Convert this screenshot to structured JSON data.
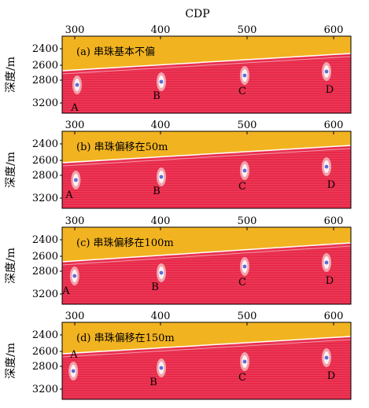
{
  "figure": {
    "top_axis_label": "CDP",
    "x_ticks": [
      "300",
      "400",
      "500",
      "600"
    ],
    "y_ticks": [
      "2400",
      "2600",
      "2800",
      "3200"
    ],
    "y_label": "深度/m",
    "colors": {
      "upper_layer": "#f2b320",
      "lower_layer": "#e8294a",
      "beads": "#5a6fd6"
    },
    "panels": [
      {
        "title": "(a) 串珠基本不偏",
        "markers": [
          "A",
          "B",
          "C",
          "D"
        ]
      },
      {
        "title": "(b) 串珠偏移在50m",
        "markers": [
          "A",
          "B",
          "C",
          "D"
        ]
      },
      {
        "title": "(c) 串珠偏移在100m",
        "markers": [
          "A",
          "B",
          "C",
          "D"
        ]
      },
      {
        "title": "(d) 串珠偏移在150m",
        "markers": [
          "A",
          "B",
          "C",
          "D"
        ]
      }
    ]
  }
}
